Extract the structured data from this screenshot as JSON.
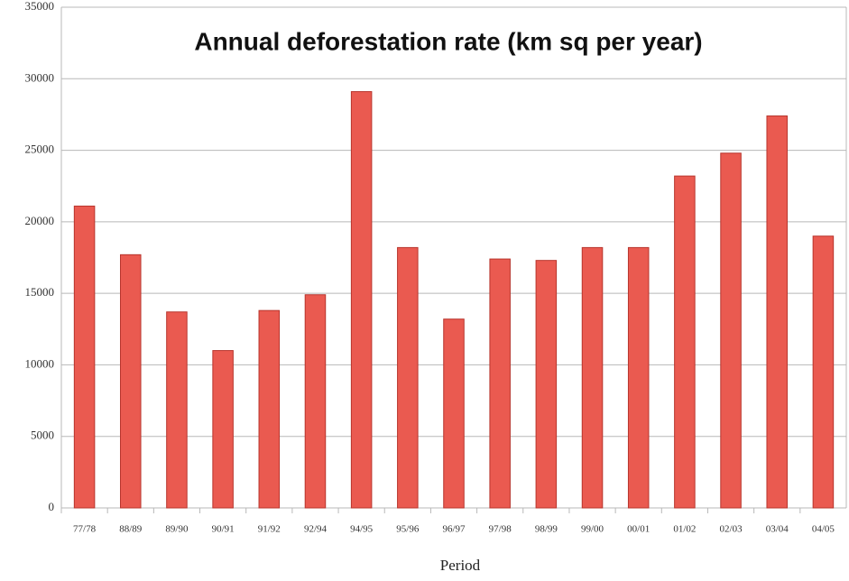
{
  "chart_data": {
    "type": "bar",
    "title": "Annual deforestation rate (km sq per year)",
    "x_label": "Period",
    "categories": [
      "77/78",
      "88/89",
      "89/90",
      "90/91",
      "91/92",
      "92/94",
      "94/95",
      "95/96",
      "96/97",
      "97/98",
      "98/99",
      "99/00",
      "00/01",
      "01/02",
      "02/03",
      "03/04",
      "04/05"
    ],
    "values": [
      21100,
      17700,
      13700,
      11000,
      13800,
      14900,
      29100,
      18200,
      13200,
      17400,
      17300,
      18200,
      18200,
      23200,
      24800,
      27400,
      19000
    ],
    "color": "#ea5a50",
    "ylim": [
      0,
      35000
    ],
    "yticks": [
      0,
      5000,
      10000,
      15000,
      20000,
      25000,
      30000,
      35000
    ],
    "grid": true
  }
}
